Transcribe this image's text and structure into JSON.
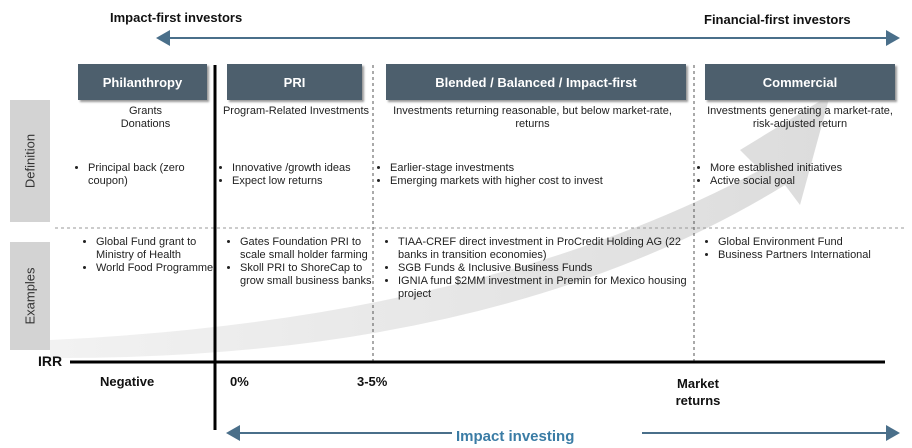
{
  "top": {
    "left": "Impact-first investors",
    "right": "Financial-first investors"
  },
  "side": {
    "definition": "Definition",
    "examples": "Examples"
  },
  "columns": [
    {
      "header": "Philanthropy",
      "definition": "Grants\nDonations",
      "bullets": [
        "Principal back (zero coupon)"
      ],
      "examples": [
        "Global Fund grant to Ministry of Health",
        "World Food Programme"
      ]
    },
    {
      "header": "PRI",
      "definition": "Program-Related Investments",
      "bullets": [
        "Innovative /growth ideas",
        "Expect low returns"
      ],
      "examples": [
        "Gates Foundation PRI to scale small holder farming",
        "Skoll PRI to ShoreCap to grow small business banks"
      ]
    },
    {
      "header": "Blended / Balanced / Impact-first",
      "definition": "Investments returning  reasonable, but below market-rate, returns",
      "bullets": [
        "Earlier-stage investments",
        "Emerging markets with higher cost to invest"
      ],
      "examples": [
        "TIAA-CREF  direct investment in ProCredit Holding AG (22 banks in transition economies)",
        "SGB Funds & Inclusive Business Funds",
        "IGNIA fund $2MM investment in Premin for Mexico housing project"
      ]
    },
    {
      "header": "Commercial",
      "definition": "Investments generating a market-rate, risk-adjusted return",
      "bullets": [
        "More established initiatives",
        "Active social goal"
      ],
      "examples": [
        "Global Environment Fund",
        "Business Partners International"
      ]
    }
  ],
  "axis": {
    "label": "IRR",
    "ticks": [
      "Negative",
      "0%",
      "3-5%",
      "Market returns"
    ]
  },
  "bottom": "Impact investing"
}
